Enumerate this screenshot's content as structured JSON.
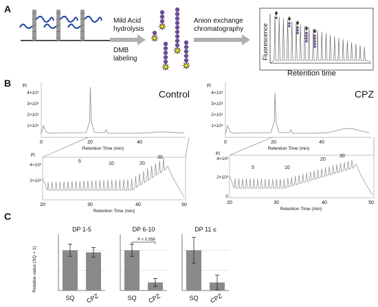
{
  "panel_a": {
    "label": "A",
    "step1": [
      "Mild Acid",
      "hydrolysis"
    ],
    "step2": [
      "DMB",
      "labeling"
    ],
    "step3": [
      "Anion exchange",
      "chromatography"
    ],
    "inset_ylabel": "Fluorescence",
    "inset_xlabel": "Retention time",
    "colors": {
      "glycan_chain": "#6a4f94",
      "fluor_tag": "#f2e01a",
      "linker": "#1e3f9c",
      "core": "#9a9a9a",
      "arrow": "#b0b0b0"
    }
  },
  "panel_b": {
    "label": "B",
    "control": {
      "title": "Control",
      "fl_label": "Fl",
      "yticks": [
        "4×10³",
        "3×10³",
        "2×10³",
        "1×10³"
      ],
      "xticks": [
        "0",
        "20",
        "40"
      ],
      "xlabel": "Retention Time (min)",
      "zoom": {
        "fl_label": "Fl",
        "yticks": [
          "4×10³",
          "2×10³"
        ],
        "xticks": [
          "20",
          "30",
          "40",
          "50"
        ],
        "dp_labels": [
          "5",
          "10",
          "20",
          "30"
        ],
        "xlabel": "Retention Time (min)"
      }
    },
    "cpz": {
      "title": "CPZ",
      "fl_label": "Fl",
      "yticks": [
        "4×10³",
        "3×10³",
        "2×10³",
        "1×10³"
      ],
      "xticks": [
        "0",
        "20",
        "40"
      ],
      "xlabel": "Retention Time (min)",
      "zoom": {
        "fl_label": "Fl",
        "yticks": [
          "4×10³",
          "2×10³",
          "0"
        ],
        "xticks": [
          "20",
          "30",
          "40",
          "50"
        ],
        "dp_labels": [
          "5",
          "10",
          "20",
          "30"
        ],
        "xlabel": "Retention Time (min)"
      }
    }
  },
  "panel_c": {
    "label": "C",
    "ylabel": "Relative value (SQ = 1)",
    "pvalue": "P < 0.056",
    "colors": {
      "bar": "#8a8a8a"
    }
  },
  "chart_data": [
    {
      "type": "bar",
      "title": "DP 1-5",
      "categories": [
        "SQ",
        "CPZ"
      ],
      "values": [
        1.0,
        0.95
      ],
      "errors": [
        0.15,
        0.12
      ],
      "ylim": [
        0,
        1.4
      ],
      "ylabel": "Relative value (SQ = 1)",
      "grid": true
    },
    {
      "type": "bar",
      "title": "DP 6-10",
      "categories": [
        "SQ",
        "CPZ"
      ],
      "values": [
        1.0,
        0.2
      ],
      "errors": [
        0.15,
        0.1
      ],
      "ylim": [
        0,
        1.4
      ],
      "annotations": [
        "P < 0.056"
      ],
      "grid": true
    },
    {
      "type": "bar",
      "title": "DP 11 ≤",
      "categories": [
        "SQ",
        "CPZ"
      ],
      "values": [
        1.0,
        0.2
      ],
      "errors": [
        0.32,
        0.18
      ],
      "ylim": [
        0,
        1.4
      ],
      "grid": true
    }
  ]
}
